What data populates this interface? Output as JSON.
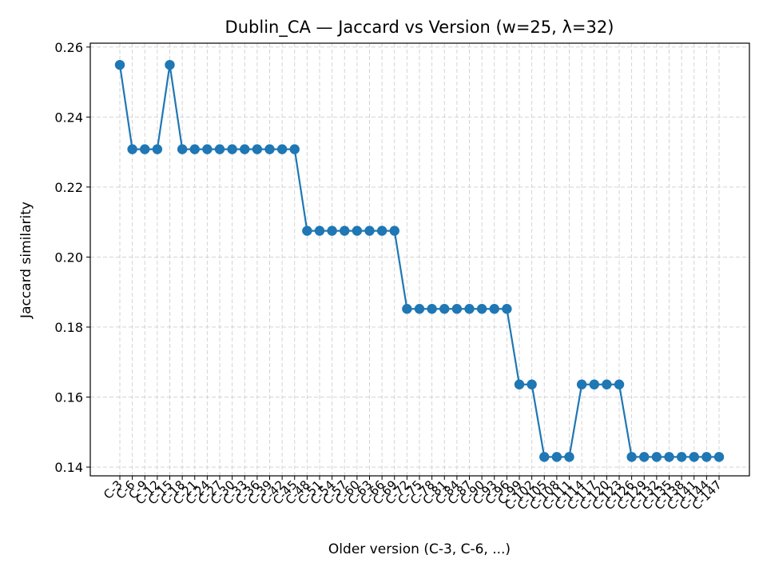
{
  "chart_data": {
    "type": "line",
    "title": "Dublin_CA — Jaccard vs Version (w=25, λ=32)",
    "xlabel": "Older version (C-3, C-6, ...)",
    "ylabel": "Jaccard similarity",
    "categories": [
      "C-3",
      "C-6",
      "C-9",
      "C-12",
      "C-15",
      "C-18",
      "C-21",
      "C-24",
      "C-27",
      "C-30",
      "C-33",
      "C-36",
      "C-39",
      "C-42",
      "C-45",
      "C-48",
      "C-51",
      "C-54",
      "C-57",
      "C-60",
      "C-63",
      "C-66",
      "C-69",
      "C-72",
      "C-75",
      "C-78",
      "C-81",
      "C-84",
      "C-87",
      "C-90",
      "C-93",
      "C-96",
      "C-99",
      "C-102",
      "C-105",
      "C-108",
      "C-111",
      "C-114",
      "C-117",
      "C-120",
      "C-123",
      "C-126",
      "C-129",
      "C-132",
      "C-135",
      "C-138",
      "C-141",
      "C-144",
      "C-147"
    ],
    "series": [
      {
        "color": "#1f77b4",
        "values": [
          0.2549,
          0.2308,
          0.2308,
          0.2308,
          0.2549,
          0.2308,
          0.2308,
          0.2308,
          0.2308,
          0.2308,
          0.2308,
          0.2308,
          0.2308,
          0.2308,
          0.2308,
          0.2075,
          0.2075,
          0.2075,
          0.2075,
          0.2075,
          0.2075,
          0.2075,
          0.2075,
          0.1852,
          0.1852,
          0.1852,
          0.1852,
          0.1852,
          0.1852,
          0.1852,
          0.1852,
          0.1852,
          0.1636,
          0.1636,
          0.1429,
          0.1429,
          0.1429,
          0.1636,
          0.1636,
          0.1636,
          0.1636,
          0.1429,
          0.1429,
          0.1429,
          0.1429,
          0.1429,
          0.1429,
          0.1429,
          0.1429
        ]
      }
    ],
    "ylim": [
      0.1375,
      0.2611
    ],
    "yticks": [
      "0.14",
      "0.16",
      "0.18",
      "0.20",
      "0.22",
      "0.24",
      "0.26"
    ],
    "grid": true,
    "legend": "none"
  }
}
